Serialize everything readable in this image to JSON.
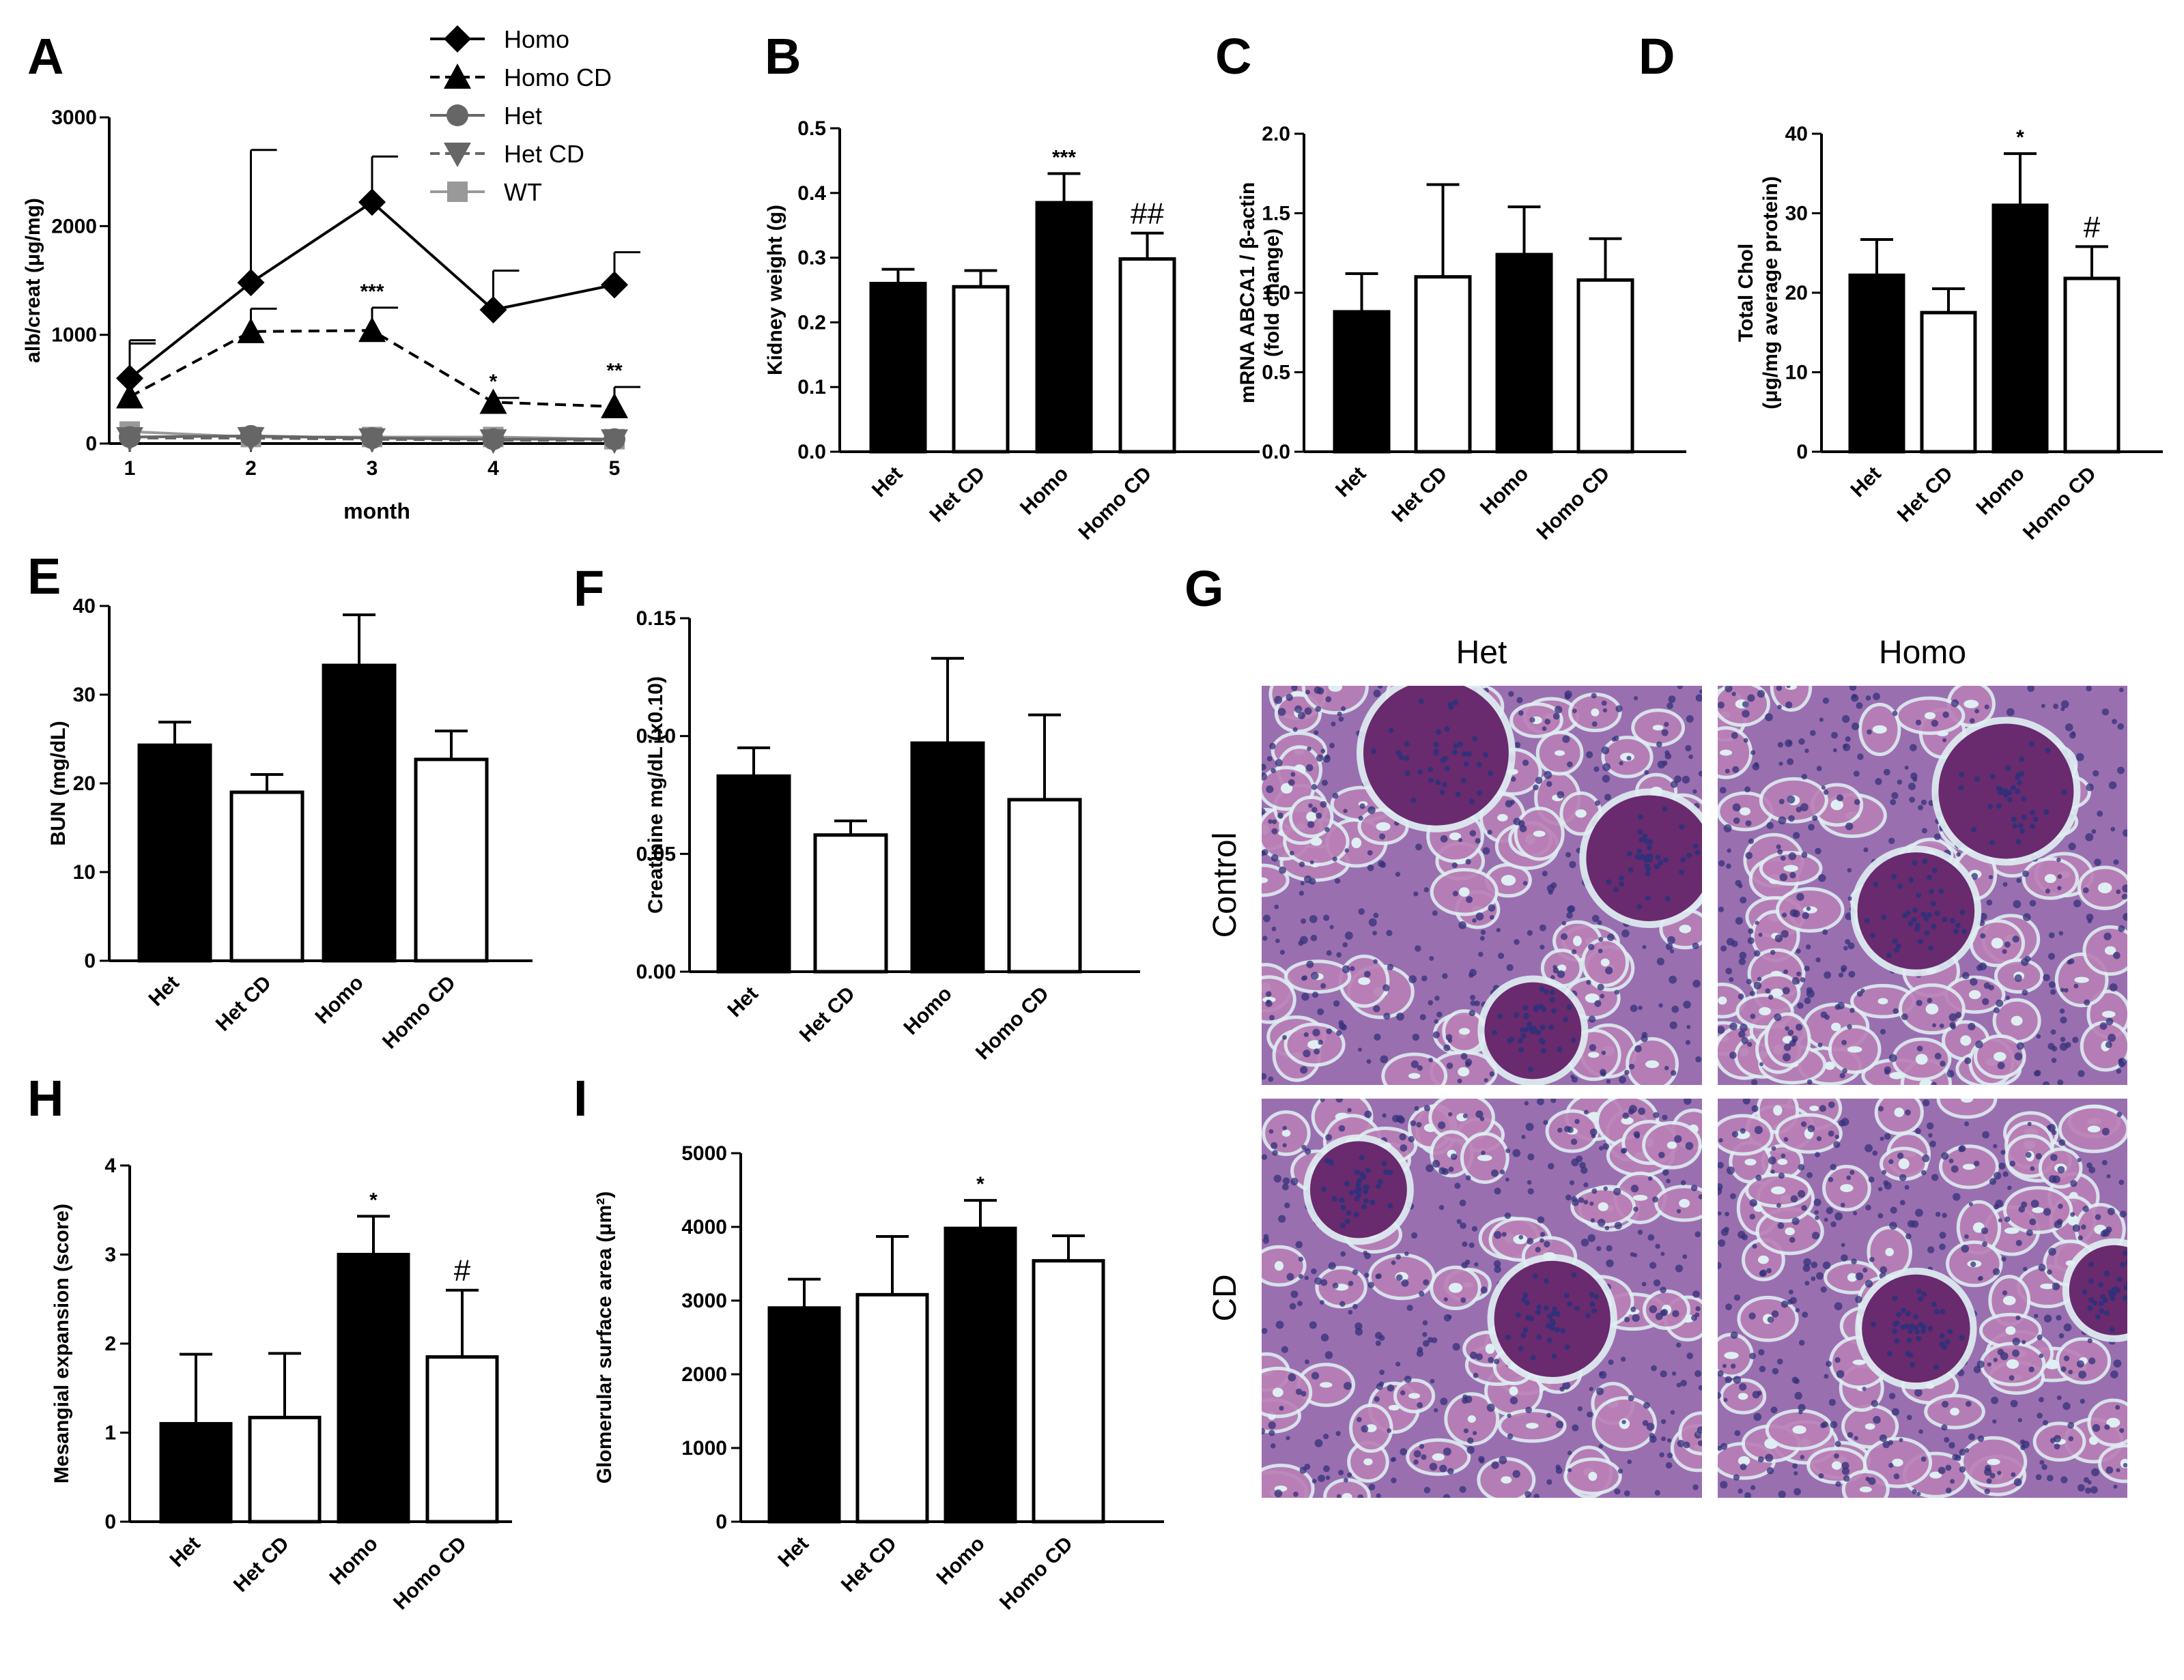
{
  "chart_data": [
    {
      "panel": "A",
      "type": "line",
      "xlabel": "month",
      "ylabel": "alb/creat (μg/mg)",
      "x": [
        1,
        2,
        3,
        4,
        5
      ],
      "ylim": [
        0,
        3000
      ],
      "yticks": [
        0,
        1000,
        2000,
        3000
      ],
      "series": [
        {
          "name": "Homo",
          "marker": "diamond",
          "dash": false,
          "color": "#000000",
          "values": [
            600,
            1480,
            2220,
            1230,
            1460
          ],
          "err": [
            320,
            1220,
            420,
            360,
            300
          ]
        },
        {
          "name": "Homo CD",
          "marker": "triangle-up",
          "dash": true,
          "color": "#000000",
          "values": [
            430,
            1030,
            1040,
            380,
            340
          ],
          "err": [
            520,
            210,
            210,
            40,
            180
          ]
        },
        {
          "name": "Het",
          "marker": "circle",
          "dash": false,
          "color": "#666666",
          "values": [
            60,
            70,
            50,
            40,
            40
          ],
          "err": [
            0,
            0,
            0,
            0,
            0
          ]
        },
        {
          "name": "Het CD",
          "marker": "triangle-down",
          "dash": true,
          "color": "#666666",
          "values": [
            50,
            50,
            40,
            30,
            30
          ],
          "err": [
            0,
            0,
            0,
            0,
            0
          ]
        },
        {
          "name": "WT",
          "marker": "square",
          "dash": false,
          "color": "#999999",
          "values": [
            110,
            60,
            60,
            60,
            40
          ],
          "err": [
            0,
            0,
            0,
            0,
            0
          ]
        }
      ],
      "annotations": [
        {
          "x": 3,
          "text": "***"
        },
        {
          "x": 4,
          "text": "*"
        },
        {
          "x": 5,
          "text": "**"
        }
      ]
    },
    {
      "panel": "B",
      "type": "bar",
      "ylabel": "Kidney weight (g)",
      "categories": [
        "Het",
        "Het CD",
        "Homo",
        "Homo CD"
      ],
      "fills": [
        "black",
        "white",
        "black",
        "white"
      ],
      "values": [
        0.26,
        0.255,
        0.385,
        0.298
      ],
      "err": [
        0.022,
        0.025,
        0.045,
        0.04
      ],
      "ylim": [
        0,
        0.5
      ],
      "yticks": [
        "0.0",
        "0.1",
        "0.2",
        "0.3",
        "0.4",
        "0.5"
      ],
      "annotations": [
        "",
        "",
        "***",
        "##"
      ]
    },
    {
      "panel": "C",
      "type": "bar",
      "ylabel": "mRNA ABCA1 / β-actin (fold change)",
      "categories": [
        "Het",
        "Het CD",
        "Homo",
        "Homo CD"
      ],
      "fills": [
        "black",
        "white",
        "black",
        "white"
      ],
      "values": [
        0.88,
        1.1,
        1.24,
        1.08
      ],
      "err": [
        0.24,
        0.58,
        0.3,
        0.26
      ],
      "ylim": [
        0,
        2
      ],
      "yticks": [
        "0.0",
        "0.5",
        "1.0",
        "1.5",
        "2.0"
      ],
      "annotations": [
        "",
        "",
        "",
        ""
      ]
    },
    {
      "panel": "D",
      "type": "bar",
      "ylabel": "Total Chol (μg/mg average protein)",
      "categories": [
        "Het",
        "Het CD",
        "Homo",
        "Homo CD"
      ],
      "fills": [
        "black",
        "white",
        "black",
        "white"
      ],
      "values": [
        22.2,
        17.5,
        31,
        21.8
      ],
      "err": [
        4.5,
        3.0,
        6.5,
        4.0
      ],
      "ylim": [
        0,
        40
      ],
      "yticks": [
        "0",
        "10",
        "20",
        "30",
        "40"
      ],
      "annotations": [
        "",
        "",
        "*",
        "#"
      ]
    },
    {
      "panel": "E",
      "type": "bar",
      "ylabel": "BUN (mg/dL)",
      "categories": [
        "Het",
        "Het CD",
        "Homo",
        "Homo CD"
      ],
      "fills": [
        "black",
        "white",
        "black",
        "white"
      ],
      "values": [
        24.3,
        19,
        33.3,
        22.7
      ],
      "err": [
        2.6,
        2.0,
        5.7,
        3.2
      ],
      "ylim": [
        0,
        40
      ],
      "yticks": [
        "0",
        "10",
        "20",
        "30",
        "40"
      ],
      "annotations": [
        "",
        "",
        "",
        ""
      ]
    },
    {
      "panel": "F",
      "type": "bar",
      "ylabel": "Creatinine mg/dL (x0.10)",
      "categories": [
        "Het",
        "Het CD",
        "Homo",
        "Homo CD"
      ],
      "fills": [
        "black",
        "white",
        "black",
        "white"
      ],
      "values": [
        0.083,
        0.058,
        0.097,
        0.073
      ],
      "err": [
        0.012,
        0.006,
        0.036,
        0.036
      ],
      "ylim": [
        0,
        0.15
      ],
      "yticks": [
        "0.00",
        "0.05",
        "0.10",
        "0.15"
      ],
      "annotations": [
        "",
        "",
        "",
        ""
      ]
    },
    {
      "panel": "H",
      "type": "bar",
      "ylabel": "Mesangial expansion (score)",
      "categories": [
        "Het",
        "Het CD",
        "Homo",
        "Homo CD"
      ],
      "fills": [
        "black",
        "white",
        "black",
        "white"
      ],
      "values": [
        1.1,
        1.17,
        3.0,
        1.85
      ],
      "err": [
        0.78,
        0.72,
        0.43,
        0.75
      ],
      "ylim": [
        0,
        4
      ],
      "yticks": [
        "0",
        "1",
        "2",
        "3",
        "4"
      ],
      "annotations": [
        "",
        "",
        "*",
        "#"
      ]
    },
    {
      "panel": "I",
      "type": "bar",
      "ylabel": "Glomerular surface area (μm²)",
      "categories": [
        "Het",
        "Het CD",
        "Homo",
        "Homo CD"
      ],
      "fills": [
        "black",
        "white",
        "black",
        "white"
      ],
      "values": [
        2900,
        3080,
        3980,
        3540
      ],
      "err": [
        390,
        790,
        380,
        340
      ],
      "ylim": [
        0,
        5000
      ],
      "yticks": [
        "0",
        "1000",
        "2000",
        "3000",
        "4000",
        "5000"
      ],
      "annotations": [
        "",
        "",
        "*",
        ""
      ]
    }
  ],
  "histology": {
    "panel": "G",
    "columns": [
      "Het",
      "Homo"
    ],
    "rows": [
      "Control",
      "CD"
    ],
    "colors": {
      "background": "#9a6fb0",
      "tubule": "#b97fb6",
      "nuclei": "#33307a",
      "glomerulus": "#6a2a6e",
      "lumen": "#dfeef2"
    }
  }
}
